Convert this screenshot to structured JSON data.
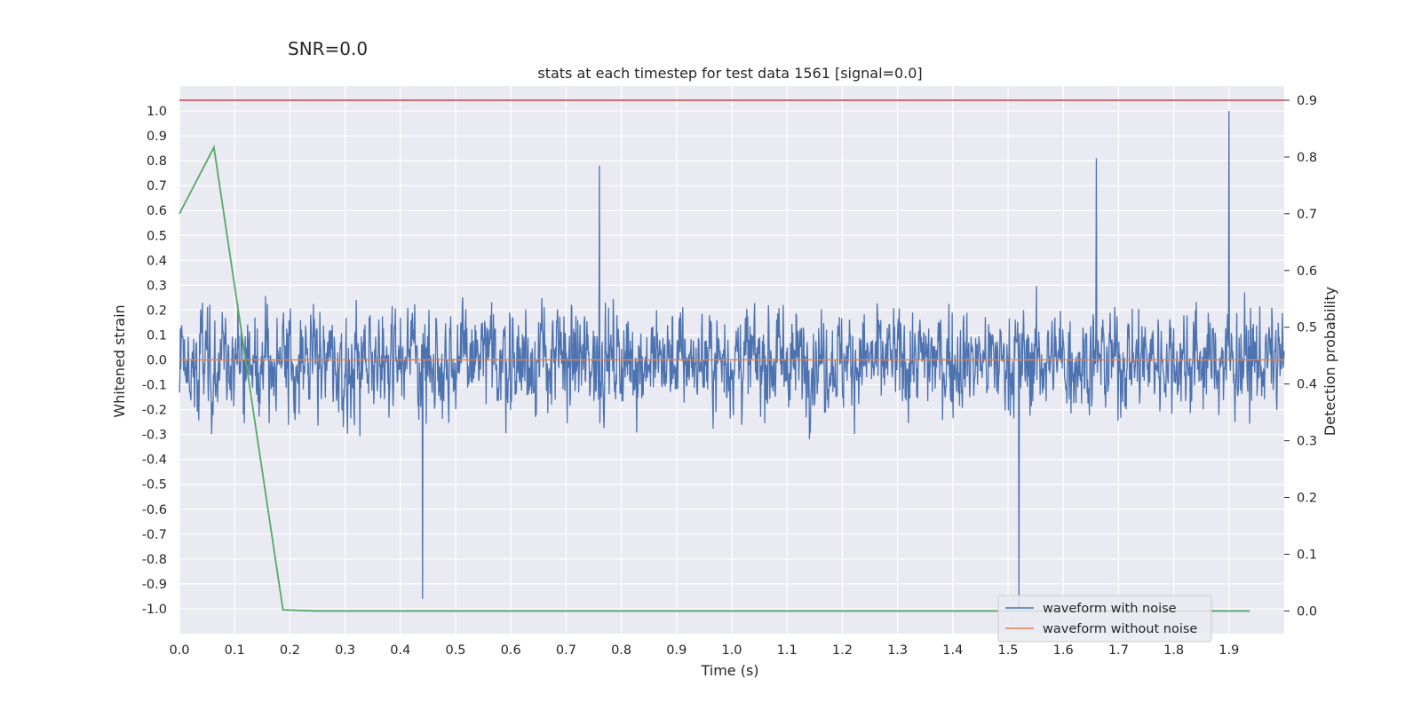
{
  "suptitle": "SNR=0.0",
  "chart_data": {
    "type": "line",
    "title": "stats at each timestep for test data 1561 [signal=0.0]",
    "xlabel": "Time (s)",
    "ylabel": "Whitened strain",
    "y2label": "Detection probability",
    "xlim": [
      0.0,
      2.0
    ],
    "ylim": [
      -1.1,
      1.1
    ],
    "y2lim": [
      -0.04,
      0.925
    ],
    "xticks": [
      "0.0",
      "0.1",
      "0.2",
      "0.3",
      "0.4",
      "0.5",
      "0.6",
      "0.7",
      "0.8",
      "0.9",
      "1.0",
      "1.1",
      "1.2",
      "1.3",
      "1.4",
      "1.5",
      "1.6",
      "1.7",
      "1.8",
      "1.9"
    ],
    "yticks": [
      "1.0",
      "0.9",
      "0.8",
      "0.7",
      "0.6",
      "0.5",
      "0.4",
      "0.3",
      "0.2",
      "0.1",
      "0.0",
      "-0.1",
      "-0.2",
      "-0.3",
      "-0.4",
      "-0.5",
      "-0.6",
      "-0.7",
      "-0.8",
      "-0.9",
      "-1.0"
    ],
    "y2ticks": [
      "0.9",
      "0.8",
      "0.7",
      "0.6",
      "0.5",
      "0.4",
      "0.3",
      "0.2",
      "0.1",
      "0.0"
    ],
    "grid": true,
    "legend_position": "lower-right",
    "colors": {
      "noise": "#4c72b0",
      "clean": "#dd8452",
      "probability": "#55a868",
      "threshold": "#c44e52",
      "background": "#eaeaf2",
      "grid": "#ffffff"
    },
    "series": [
      {
        "name": "waveform with noise",
        "axis": "left",
        "description_values": "noise trace approx. between -0.96 and 1.0, peaks at t=0.44 (-0.96), t=1.52 (-1.0), t=1.9 (1.0)",
        "notable_points": [
          {
            "x": 0.44,
            "y": -0.96
          },
          {
            "x": 1.52,
            "y": -1.0
          },
          {
            "x": 1.9,
            "y": 1.0
          },
          {
            "x": 0.76,
            "y": 0.78
          },
          {
            "x": 1.66,
            "y": 0.81
          }
        ]
      },
      {
        "name": "waveform without noise",
        "axis": "left",
        "x": [
          0.0,
          2.0
        ],
        "y": [
          0.0,
          0.0
        ]
      },
      {
        "axis": "right",
        "x": [
          0.0,
          0.0625,
          0.1875,
          0.25,
          0.3125,
          0.375,
          0.4375,
          0.5,
          0.5625,
          0.625,
          0.6875,
          0.75,
          0.8125,
          0.875,
          0.9375,
          1.0,
          1.0625,
          1.125,
          1.1875,
          1.25,
          1.3125,
          1.375,
          1.4375,
          1.5,
          1.5625,
          1.625,
          1.6875,
          1.75,
          1.8125,
          1.875,
          1.9375
        ],
        "y": [
          0.7,
          0.817,
          0.002,
          0.0,
          0.0,
          0.0,
          0.0,
          0.0,
          0.0,
          0.0,
          0.0,
          0.0,
          0.0,
          0.0,
          0.0,
          0.0,
          0.0,
          0.0,
          0.0,
          0.0,
          0.0,
          0.0,
          0.0,
          0.0,
          0.0,
          0.0,
          0.0,
          0.0,
          0.0,
          0.0,
          0.0
        ]
      },
      {
        "axis": "right",
        "x": [
          0.0,
          2.0
        ],
        "y": [
          0.9,
          0.9
        ]
      }
    ]
  }
}
